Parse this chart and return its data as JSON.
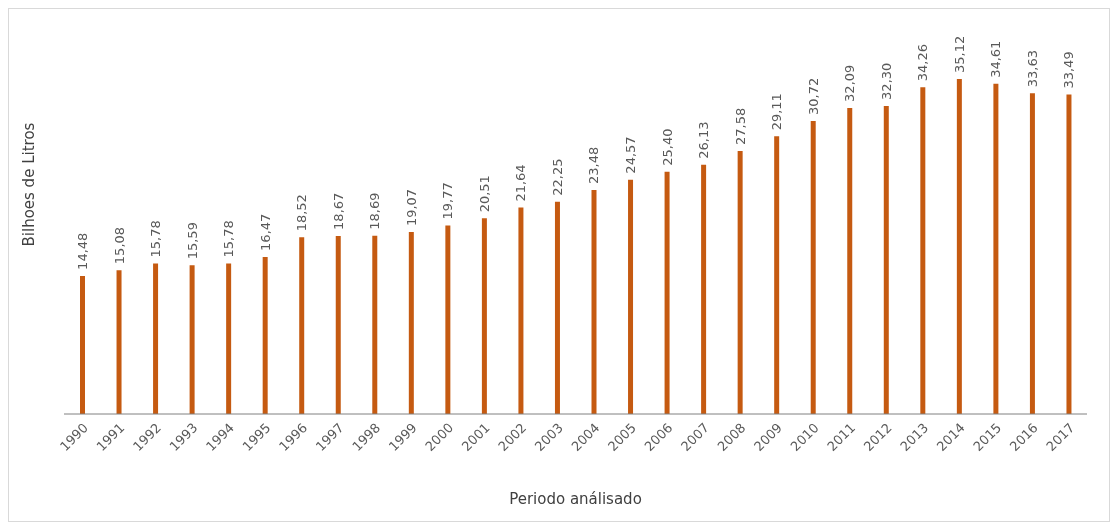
{
  "chart_data": {
    "type": "bar",
    "xlabel": "Periodo análisado",
    "ylabel": "Bilhoes de Litros",
    "categories": [
      "1990",
      "1991",
      "1992",
      "1993",
      "1994",
      "1995",
      "1996",
      "1997",
      "1998",
      "1999",
      "2000",
      "2001",
      "2002",
      "2003",
      "2004",
      "2005",
      "2006",
      "2007",
      "2008",
      "2009",
      "2010",
      "2011",
      "2012",
      "2013",
      "2014",
      "2015",
      "2016",
      "2017"
    ],
    "values": [
      14.48,
      15.08,
      15.78,
      15.59,
      15.78,
      16.47,
      18.52,
      18.67,
      18.69,
      19.07,
      19.77,
      20.51,
      21.64,
      22.25,
      23.48,
      24.57,
      25.4,
      26.13,
      27.58,
      29.11,
      30.72,
      32.09,
      32.3,
      34.26,
      35.12,
      34.61,
      33.63,
      33.49
    ],
    "value_labels": [
      "14,48",
      "15,08",
      "15,78",
      "15,59",
      "15,78",
      "16,47",
      "18,52",
      "18,67",
      "18,69",
      "19,07",
      "19,77",
      "20,51",
      "21,64",
      "22,25",
      "23,48",
      "24,57",
      "25,40",
      "26,13",
      "27,58",
      "29,11",
      "30,72",
      "32,09",
      "32,30",
      "34,26",
      "35,12",
      "34,61",
      "33,63",
      "33,49"
    ],
    "color": "#c55a11",
    "grid": false
  }
}
